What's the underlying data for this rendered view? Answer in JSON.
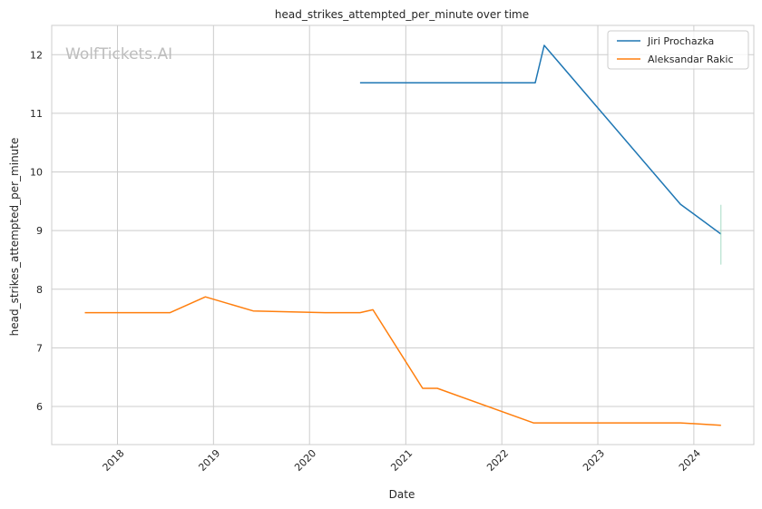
{
  "chart_data": {
    "type": "line",
    "title": "head_strikes_attempted_per_minute over time",
    "xlabel": "Date",
    "ylabel": "head_strikes_attempted_per_minute",
    "watermark": "WolfTickets.AI",
    "xlim": [
      "2017-04-26",
      "2024-08-16"
    ],
    "ylim": [
      5.35,
      12.5
    ],
    "x_ticks": [
      "2018-01-01",
      "2019-01-01",
      "2020-01-01",
      "2021-01-01",
      "2022-01-01",
      "2023-01-01",
      "2024-01-01"
    ],
    "x_tick_labels": [
      "2018",
      "2019",
      "2020",
      "2021",
      "2022",
      "2023",
      "2024"
    ],
    "y_ticks": [
      6,
      7,
      8,
      9,
      10,
      11,
      12
    ],
    "y_tick_labels": [
      "6",
      "7",
      "8",
      "9",
      "10",
      "11",
      "12"
    ],
    "grid": true,
    "legend_position": "top-right",
    "series": [
      {
        "name": "Jiri Prochazka",
        "color": "#1f77b4",
        "points": [
          [
            "2020-07-11",
            11.52
          ],
          [
            "2022-05-08",
            11.52
          ],
          [
            "2022-06-11",
            12.16
          ],
          [
            "2023-11-11",
            9.45
          ],
          [
            "2024-04-13",
            8.94
          ]
        ]
      },
      {
        "name": "Aleksandar Rakic",
        "color": "#ff7f0e",
        "points": [
          [
            "2017-08-30",
            7.6
          ],
          [
            "2018-07-20",
            7.6
          ],
          [
            "2018-12-01",
            7.87
          ],
          [
            "2019-06-01",
            7.63
          ],
          [
            "2020-02-29",
            7.6
          ],
          [
            "2020-07-11",
            7.6
          ],
          [
            "2020-08-29",
            7.65
          ],
          [
            "2021-03-06",
            6.31
          ],
          [
            "2021-05-01",
            6.31
          ],
          [
            "2022-05-01",
            5.72
          ],
          [
            "2023-11-11",
            5.72
          ],
          [
            "2024-04-13",
            5.68
          ]
        ]
      }
    ],
    "error_bar": {
      "series": "Jiri Prochazka",
      "color": "#a6dbc5",
      "x": "2024-04-13",
      "y_low": 8.42,
      "y_high": 9.44
    }
  }
}
